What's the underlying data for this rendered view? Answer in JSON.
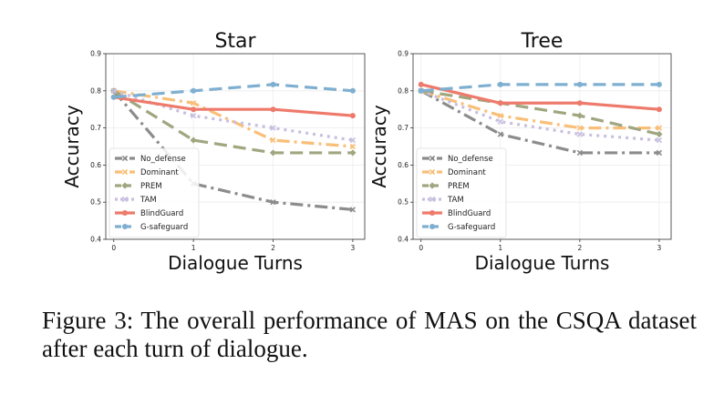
{
  "caption": "Figure 3: The overall performance of MAS on the CSQA dataset after each turn of dialogue.",
  "chart_data": [
    {
      "type": "line",
      "title": "Star",
      "xlabel": "Dialogue Turns",
      "ylabel": "Accuracy",
      "x": [
        0,
        1,
        2,
        3
      ],
      "xticks": [
        "0",
        "1",
        "2",
        "3"
      ],
      "ylim": [
        0.4,
        0.9
      ],
      "yticks": [
        "0.4",
        "0.5",
        "0.6",
        "0.7",
        "0.8",
        "0.9"
      ],
      "grid": true,
      "legend_position": "lower-left",
      "series": [
        {
          "name": "No_defense",
          "values": [
            0.8,
            0.55,
            0.5,
            0.48
          ],
          "color": "#8c8c8c",
          "dash": "dashdot",
          "marker": "x"
        },
        {
          "name": "Dominant",
          "values": [
            0.8,
            0.767,
            0.667,
            0.65
          ],
          "color": "#f9bf78",
          "dash": "dashdot",
          "marker": "x"
        },
        {
          "name": "PREM",
          "values": [
            0.8,
            0.667,
            0.633,
            0.633
          ],
          "color": "#a0a67f",
          "dash": "dash",
          "marker": "diamond"
        },
        {
          "name": "TAM",
          "values": [
            0.8,
            0.733,
            0.7,
            0.667
          ],
          "color": "#c8bfe0",
          "dash": "dot",
          "marker": "x"
        },
        {
          "name": "BlindGuard",
          "values": [
            0.783,
            0.75,
            0.75,
            0.733
          ],
          "color": "#ee7a6b",
          "dash": "solid",
          "marker": "circle"
        },
        {
          "name": "G-safeguard",
          "values": [
            0.783,
            0.8,
            0.817,
            0.8
          ],
          "color": "#7fafd0",
          "dash": "dash",
          "marker": "circle"
        }
      ]
    },
    {
      "type": "line",
      "title": "Tree",
      "xlabel": "Dialogue Turns",
      "ylabel": "Accuracy",
      "x": [
        0,
        1,
        2,
        3
      ],
      "xticks": [
        "0",
        "1",
        "2",
        "3"
      ],
      "ylim": [
        0.4,
        0.9
      ],
      "yticks": [
        "0.4",
        "0.5",
        "0.6",
        "0.7",
        "0.8",
        "0.9"
      ],
      "grid": true,
      "legend_position": "lower-left",
      "series": [
        {
          "name": "No_defense",
          "values": [
            0.8,
            0.683,
            0.633,
            0.633
          ],
          "color": "#8c8c8c",
          "dash": "dashdot",
          "marker": "x"
        },
        {
          "name": "Dominant",
          "values": [
            0.8,
            0.733,
            0.7,
            0.7
          ],
          "color": "#f9bf78",
          "dash": "dashdot",
          "marker": "x"
        },
        {
          "name": "PREM",
          "values": [
            0.8,
            0.767,
            0.733,
            0.683
          ],
          "color": "#a0a67f",
          "dash": "dash",
          "marker": "diamond"
        },
        {
          "name": "TAM",
          "values": [
            0.8,
            0.717,
            0.683,
            0.667
          ],
          "color": "#c8bfe0",
          "dash": "dot",
          "marker": "x"
        },
        {
          "name": "BlindGuard",
          "values": [
            0.817,
            0.767,
            0.767,
            0.75
          ],
          "color": "#ee7a6b",
          "dash": "solid",
          "marker": "circle"
        },
        {
          "name": "G-safeguard",
          "values": [
            0.8,
            0.817,
            0.817,
            0.817
          ],
          "color": "#7fafd0",
          "dash": "dash",
          "marker": "circle"
        }
      ]
    }
  ]
}
